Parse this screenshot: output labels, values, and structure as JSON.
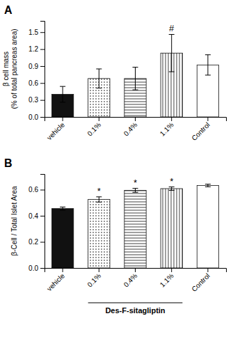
{
  "chart_data": [
    {
      "type": "bar",
      "title": "A",
      "categories": [
        "vehicle",
        "0.1%",
        "0.4%",
        "1.1%",
        "Control"
      ],
      "values": [
        0.4,
        0.68,
        0.68,
        1.13,
        0.92
      ],
      "errors": [
        0.14,
        0.17,
        0.2,
        0.33,
        0.18
      ],
      "colors": [
        "#111111",
        "white",
        "white",
        "white",
        "white"
      ],
      "ylabel": "β cell mass\n(% of total pancreas area)",
      "ylim": [
        0,
        1.7
      ],
      "yticks": [
        {
          "value": 0.0,
          "label": "0.0"
        },
        0.3,
        0.6,
        0.9,
        1.2,
        1.5
      ],
      "grid": false,
      "annotations": [
        {
          "text": "#",
          "x": "1.1%"
        }
      ]
    },
    {
      "type": "bar",
      "title": "B",
      "categories": [
        "vehicle",
        "0.1%",
        "0.4%",
        "1.1%",
        "Control"
      ],
      "values": [
        0.455,
        0.525,
        0.595,
        0.608,
        0.632
      ],
      "errors": [
        0.012,
        0.02,
        0.015,
        0.013,
        0.01
      ],
      "colors": [
        "#111111",
        "white",
        "white",
        "white",
        "white"
      ],
      "ylabel": "β-Cell / Total Islet Area",
      "ylim": [
        0,
        0.72
      ],
      "yticks": [
        {
          "value": 0.0,
          "label": "0.0"
        },
        0.2,
        0.4,
        0.6
      ],
      "grid": false,
      "annotations": [
        {
          "text": "*",
          "x": "0.1%"
        },
        {
          "text": "*",
          "x": "0.4%"
        },
        {
          "text": "*",
          "x": "1.1%"
        },
        {
          "text": "Des-F-sitagliptin",
          "x": [
            "0.1%",
            "1.1%"
          ]
        }
      ]
    }
  ]
}
